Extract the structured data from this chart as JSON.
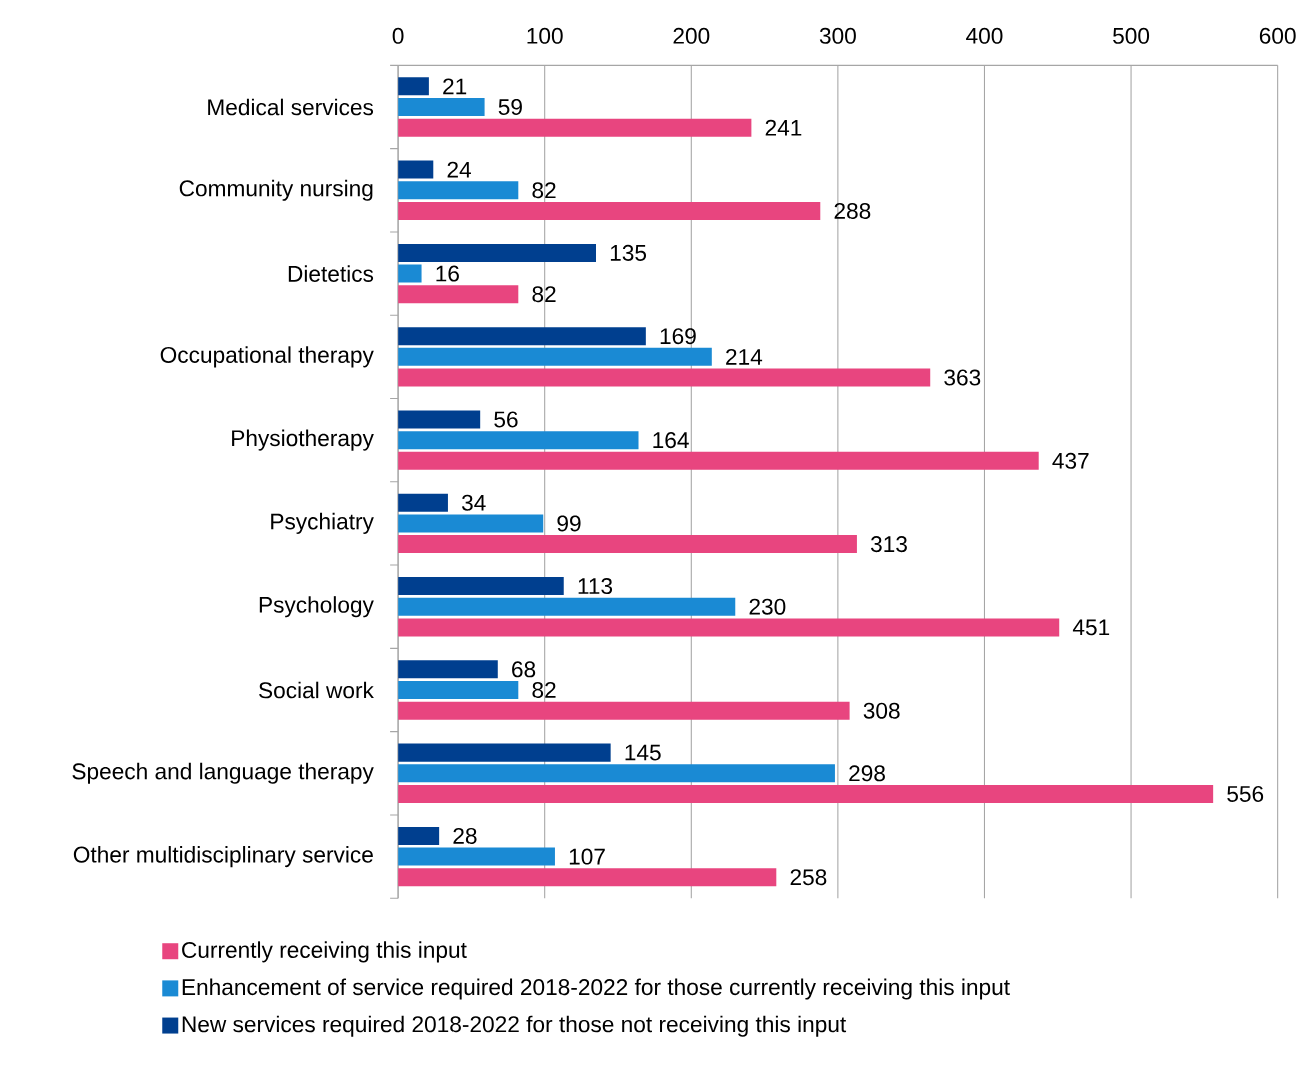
{
  "chart_data": {
    "type": "bar",
    "orientation": "horizontal",
    "categories": [
      "Medical services",
      "Community nursing",
      "Dietetics",
      "Occupational therapy",
      "Physiotherapy",
      "Psychiatry",
      "Psychology",
      "Social work",
      "Speech and language therapy",
      "Other multidisciplinary service"
    ],
    "series": [
      {
        "name": "Currently receiving this input",
        "color": "#e8457f",
        "values": [
          241,
          288,
          82,
          363,
          437,
          313,
          451,
          308,
          556,
          258
        ]
      },
      {
        "name": "Enhancement of service required 2018-2022 for those currently receiving this input",
        "color": "#1a8ad4",
        "values": [
          59,
          82,
          16,
          214,
          164,
          99,
          230,
          82,
          298,
          107
        ]
      },
      {
        "name": "New services required 2018-2022 for those not receiving this input",
        "color": "#003f8f",
        "values": [
          21,
          24,
          135,
          169,
          56,
          34,
          113,
          68,
          145,
          28
        ]
      }
    ],
    "xlim": [
      0,
      600
    ],
    "xticks": [
      0,
      100,
      200,
      300,
      400,
      500,
      600
    ],
    "grid": "x",
    "legend": "bottom",
    "data_labels": true
  }
}
